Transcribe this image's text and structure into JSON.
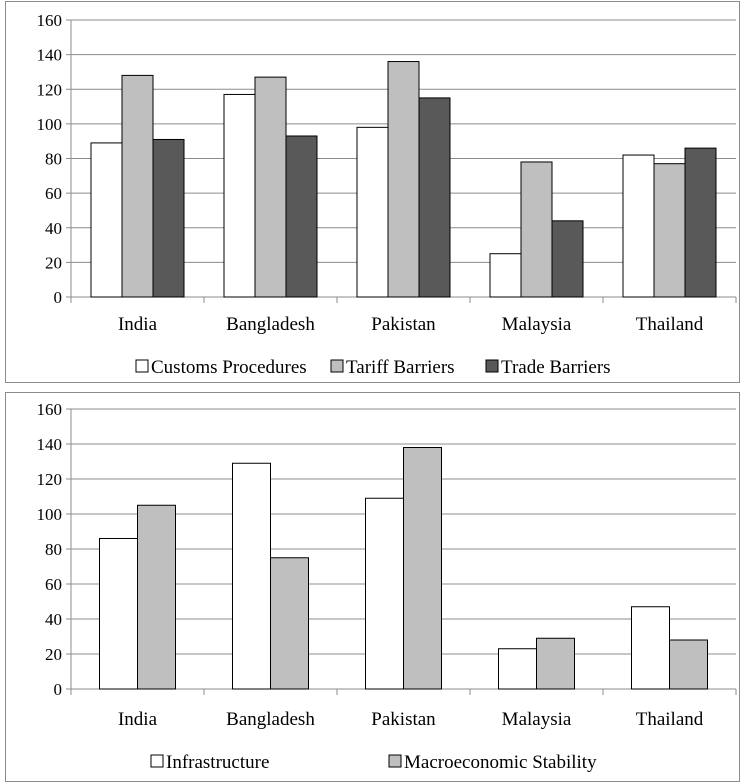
{
  "chart_data": [
    {
      "type": "bar",
      "categories": [
        "India",
        "Bangladesh",
        "Pakistan",
        "Malaysia",
        "Thailand"
      ],
      "series": [
        {
          "name": "Customs Procedures",
          "values": [
            89,
            117,
            98,
            25,
            82
          ],
          "color": "#ffffff"
        },
        {
          "name": "Tariff Barriers",
          "values": [
            128,
            127,
            136,
            78,
            77
          ],
          "color": "#bfbfbf"
        },
        {
          "name": "Trade Barriers",
          "values": [
            91,
            93,
            115,
            44,
            86
          ],
          "color": "#595959"
        }
      ],
      "ylim": [
        0,
        160
      ],
      "yticks": [
        0,
        20,
        40,
        60,
        80,
        100,
        120,
        140,
        160
      ],
      "grid": true,
      "legend": "bottom"
    },
    {
      "type": "bar",
      "categories": [
        "India",
        "Bangladesh",
        "Pakistan",
        "Malaysia",
        "Thailand"
      ],
      "series": [
        {
          "name": "Infrastructure",
          "values": [
            86,
            129,
            109,
            23,
            47
          ],
          "color": "#ffffff"
        },
        {
          "name": "Macroeconomic Stability",
          "values": [
            105,
            75,
            138,
            29,
            28
          ],
          "color": "#bfbfbf"
        }
      ],
      "ylim": [
        0,
        160
      ],
      "yticks": [
        0,
        20,
        40,
        60,
        80,
        100,
        120,
        140,
        160
      ],
      "grid": true,
      "legend": "bottom"
    }
  ]
}
